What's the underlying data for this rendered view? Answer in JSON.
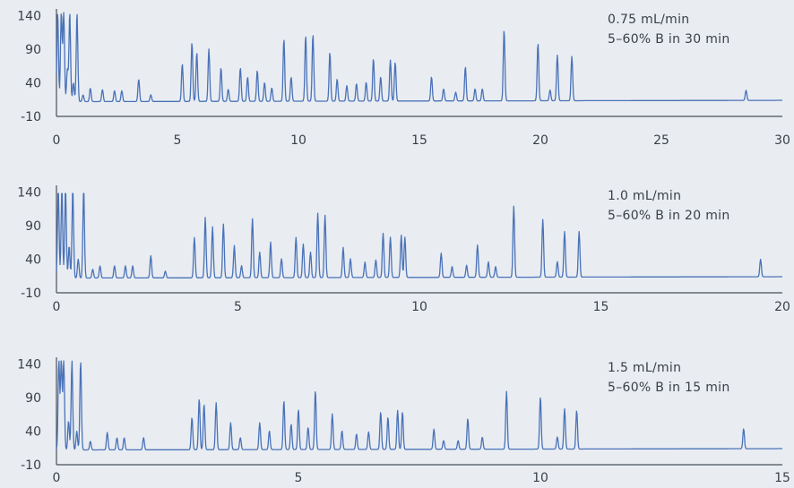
{
  "chart_data": [
    {
      "type": "line",
      "title": "",
      "xlabel": "",
      "ylabel": "",
      "xlim": [
        0,
        30
      ],
      "ylim": [
        -10,
        145
      ],
      "x_ticks": [
        0,
        5,
        10,
        15,
        20,
        25,
        30
      ],
      "y_ticks": [
        -10,
        40,
        90,
        140
      ],
      "annotation": [
        "0.75 mL/min",
        "5–60% B in 30 min"
      ],
      "baseline": 12,
      "grid": false,
      "line_color": "#4a72b8",
      "peaks": [
        {
          "x": 0.05,
          "y": 145
        },
        {
          "x": 0.2,
          "y": 145
        },
        {
          "x": 0.3,
          "y": 145
        },
        {
          "x": 0.45,
          "y": 60
        },
        {
          "x": 0.55,
          "y": 145
        },
        {
          "x": 0.7,
          "y": 40
        },
        {
          "x": 0.85,
          "y": 145
        },
        {
          "x": 1.1,
          "y": 22
        },
        {
          "x": 1.4,
          "y": 32
        },
        {
          "x": 1.9,
          "y": 30
        },
        {
          "x": 2.4,
          "y": 28
        },
        {
          "x": 2.7,
          "y": 28
        },
        {
          "x": 3.4,
          "y": 45
        },
        {
          "x": 3.9,
          "y": 22
        },
        {
          "x": 5.2,
          "y": 68
        },
        {
          "x": 5.6,
          "y": 100
        },
        {
          "x": 5.8,
          "y": 85
        },
        {
          "x": 6.3,
          "y": 90
        },
        {
          "x": 6.8,
          "y": 62
        },
        {
          "x": 7.1,
          "y": 30
        },
        {
          "x": 7.6,
          "y": 62
        },
        {
          "x": 7.9,
          "y": 48
        },
        {
          "x": 8.3,
          "y": 58
        },
        {
          "x": 8.6,
          "y": 40
        },
        {
          "x": 8.9,
          "y": 32
        },
        {
          "x": 9.4,
          "y": 105
        },
        {
          "x": 9.7,
          "y": 48
        },
        {
          "x": 10.3,
          "y": 110
        },
        {
          "x": 10.6,
          "y": 112
        },
        {
          "x": 11.3,
          "y": 85
        },
        {
          "x": 11.6,
          "y": 45
        },
        {
          "x": 12.0,
          "y": 35
        },
        {
          "x": 12.4,
          "y": 38
        },
        {
          "x": 12.8,
          "y": 40
        },
        {
          "x": 13.1,
          "y": 75
        },
        {
          "x": 13.4,
          "y": 48
        },
        {
          "x": 13.8,
          "y": 73
        },
        {
          "x": 14.0,
          "y": 70
        },
        {
          "x": 15.5,
          "y": 48
        },
        {
          "x": 16.0,
          "y": 30
        },
        {
          "x": 16.5,
          "y": 25
        },
        {
          "x": 16.9,
          "y": 63
        },
        {
          "x": 17.3,
          "y": 30
        },
        {
          "x": 17.6,
          "y": 30
        },
        {
          "x": 18.5,
          "y": 118
        },
        {
          "x": 19.9,
          "y": 98
        },
        {
          "x": 20.4,
          "y": 28
        },
        {
          "x": 20.7,
          "y": 80
        },
        {
          "x": 21.3,
          "y": 78
        },
        {
          "x": 28.5,
          "y": 27
        }
      ]
    },
    {
      "type": "line",
      "title": "",
      "xlabel": "",
      "ylabel": "",
      "xlim": [
        0,
        20
      ],
      "ylim": [
        -10,
        145
      ],
      "x_ticks": [
        0,
        5,
        10,
        15,
        20
      ],
      "y_ticks": [
        -10,
        40,
        90,
        140
      ],
      "annotation": [
        "1.0 mL/min",
        "5–60% B in 20 min"
      ],
      "baseline": 12,
      "grid": false,
      "line_color": "#4a72b8",
      "peaks": [
        {
          "x": 0.05,
          "y": 145
        },
        {
          "x": 0.15,
          "y": 145
        },
        {
          "x": 0.25,
          "y": 145
        },
        {
          "x": 0.35,
          "y": 60
        },
        {
          "x": 0.45,
          "y": 145
        },
        {
          "x": 0.6,
          "y": 40
        },
        {
          "x": 0.75,
          "y": 145
        },
        {
          "x": 1.0,
          "y": 25
        },
        {
          "x": 1.2,
          "y": 30
        },
        {
          "x": 1.6,
          "y": 30
        },
        {
          "x": 1.9,
          "y": 30
        },
        {
          "x": 2.1,
          "y": 30
        },
        {
          "x": 2.6,
          "y": 45
        },
        {
          "x": 3.0,
          "y": 22
        },
        {
          "x": 3.8,
          "y": 72
        },
        {
          "x": 4.1,
          "y": 102
        },
        {
          "x": 4.3,
          "y": 88
        },
        {
          "x": 4.6,
          "y": 92
        },
        {
          "x": 4.9,
          "y": 60
        },
        {
          "x": 5.1,
          "y": 30
        },
        {
          "x": 5.4,
          "y": 100
        },
        {
          "x": 5.6,
          "y": 50
        },
        {
          "x": 5.9,
          "y": 65
        },
        {
          "x": 6.2,
          "y": 40
        },
        {
          "x": 6.6,
          "y": 72
        },
        {
          "x": 6.8,
          "y": 62
        },
        {
          "x": 7.0,
          "y": 50
        },
        {
          "x": 7.2,
          "y": 108
        },
        {
          "x": 7.4,
          "y": 105
        },
        {
          "x": 7.9,
          "y": 57
        },
        {
          "x": 8.1,
          "y": 40
        },
        {
          "x": 8.5,
          "y": 35
        },
        {
          "x": 8.8,
          "y": 38
        },
        {
          "x": 9.0,
          "y": 78
        },
        {
          "x": 9.2,
          "y": 72
        },
        {
          "x": 9.5,
          "y": 75
        },
        {
          "x": 9.6,
          "y": 72
        },
        {
          "x": 10.6,
          "y": 48
        },
        {
          "x": 10.9,
          "y": 28
        },
        {
          "x": 11.3,
          "y": 30
        },
        {
          "x": 11.6,
          "y": 60
        },
        {
          "x": 11.9,
          "y": 35
        },
        {
          "x": 12.1,
          "y": 28
        },
        {
          "x": 12.6,
          "y": 118
        },
        {
          "x": 13.4,
          "y": 98
        },
        {
          "x": 13.8,
          "y": 35
        },
        {
          "x": 14.0,
          "y": 80
        },
        {
          "x": 14.4,
          "y": 80
        },
        {
          "x": 19.4,
          "y": 38
        }
      ]
    },
    {
      "type": "line",
      "title": "",
      "xlabel": "",
      "ylabel": "",
      "xlim": [
        0,
        15
      ],
      "ylim": [
        -10,
        145
      ],
      "x_ticks": [
        0,
        5,
        10,
        15
      ],
      "y_ticks": [
        -10,
        40,
        90,
        140
      ],
      "annotation": [
        "1.5 mL/min",
        "5–60% B in 15 min"
      ],
      "baseline": 12,
      "grid": false,
      "line_color": "#4a72b8",
      "peaks": [
        {
          "x": 0.05,
          "y": 145
        },
        {
          "x": 0.1,
          "y": 145
        },
        {
          "x": 0.15,
          "y": 145
        },
        {
          "x": 0.25,
          "y": 55
        },
        {
          "x": 0.32,
          "y": 145
        },
        {
          "x": 0.42,
          "y": 40
        },
        {
          "x": 0.5,
          "y": 145
        },
        {
          "x": 0.7,
          "y": 25
        },
        {
          "x": 1.05,
          "y": 38
        },
        {
          "x": 1.25,
          "y": 30
        },
        {
          "x": 1.4,
          "y": 30
        },
        {
          "x": 1.8,
          "y": 30
        },
        {
          "x": 2.8,
          "y": 60
        },
        {
          "x": 2.95,
          "y": 88
        },
        {
          "x": 3.05,
          "y": 80
        },
        {
          "x": 3.3,
          "y": 82
        },
        {
          "x": 3.6,
          "y": 52
        },
        {
          "x": 3.8,
          "y": 30
        },
        {
          "x": 4.2,
          "y": 52
        },
        {
          "x": 4.4,
          "y": 40
        },
        {
          "x": 4.7,
          "y": 85
        },
        {
          "x": 4.85,
          "y": 50
        },
        {
          "x": 5.0,
          "y": 72
        },
        {
          "x": 5.2,
          "y": 45
        },
        {
          "x": 5.35,
          "y": 100
        },
        {
          "x": 5.7,
          "y": 65
        },
        {
          "x": 5.9,
          "y": 40
        },
        {
          "x": 6.2,
          "y": 35
        },
        {
          "x": 6.45,
          "y": 38
        },
        {
          "x": 6.7,
          "y": 68
        },
        {
          "x": 6.85,
          "y": 60
        },
        {
          "x": 7.05,
          "y": 70
        },
        {
          "x": 7.15,
          "y": 68
        },
        {
          "x": 7.8,
          "y": 42
        },
        {
          "x": 8.0,
          "y": 25
        },
        {
          "x": 8.3,
          "y": 25
        },
        {
          "x": 8.5,
          "y": 58
        },
        {
          "x": 8.8,
          "y": 30
        },
        {
          "x": 9.3,
          "y": 98
        },
        {
          "x": 10.0,
          "y": 90
        },
        {
          "x": 10.35,
          "y": 30
        },
        {
          "x": 10.5,
          "y": 72
        },
        {
          "x": 10.75,
          "y": 70
        },
        {
          "x": 14.2,
          "y": 42
        }
      ]
    }
  ]
}
